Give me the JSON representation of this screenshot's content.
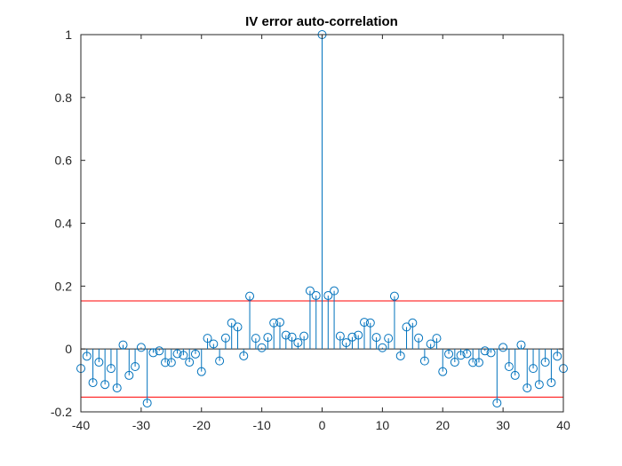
{
  "chart_data": {
    "type": "stem",
    "title": "IV error auto-correlation",
    "xlabel": "",
    "ylabel": "",
    "xlim": [
      -40,
      40
    ],
    "ylim": [
      -0.2,
      1
    ],
    "x_ticks": [
      -40,
      -30,
      -20,
      -10,
      0,
      10,
      20,
      30,
      40
    ],
    "y_ticks": [
      -0.2,
      0,
      0.2,
      0.4,
      0.6,
      0.8,
      1
    ],
    "y_tick_labels": [
      "-0.2",
      "0",
      "0.2",
      "0.4",
      "0.6",
      "0.8",
      "1"
    ],
    "grid": false,
    "box": true,
    "confidence_bounds": [
      0.153,
      -0.153
    ],
    "colors": {
      "stem": "#0072BD",
      "bound": "#FF0000",
      "axis": "#262626"
    },
    "x": [
      -40,
      -39,
      -38,
      -37,
      -36,
      -35,
      -34,
      -33,
      -32,
      -31,
      -30,
      -29,
      -28,
      -27,
      -26,
      -25,
      -24,
      -23,
      -22,
      -21,
      -20,
      -19,
      -18,
      -17,
      -16,
      -15,
      -14,
      -13,
      -12,
      -11,
      -10,
      -9,
      -8,
      -7,
      -6,
      -5,
      -4,
      -3,
      -2,
      -1,
      0,
      1,
      2,
      3,
      4,
      5,
      6,
      7,
      8,
      9,
      10,
      11,
      12,
      13,
      14,
      15,
      16,
      17,
      18,
      19,
      20,
      21,
      22,
      23,
      24,
      25,
      26,
      27,
      28,
      29,
      30,
      31,
      32,
      33,
      34,
      35,
      36,
      37,
      38,
      39,
      40
    ],
    "values": [
      -0.062,
      -0.023,
      -0.107,
      -0.042,
      -0.113,
      -0.062,
      -0.124,
      0.013,
      -0.084,
      -0.056,
      0.005,
      -0.172,
      -0.012,
      -0.006,
      -0.043,
      -0.043,
      -0.015,
      -0.02,
      -0.042,
      -0.016,
      -0.072,
      0.034,
      0.016,
      -0.038,
      0.035,
      0.083,
      0.07,
      -0.022,
      0.168,
      0.034,
      0.004,
      0.037,
      0.083,
      0.085,
      0.044,
      0.038,
      0.02,
      0.041,
      0.185,
      0.17,
      1.0,
      0.17,
      0.185,
      0.041,
      0.02,
      0.038,
      0.044,
      0.085,
      0.083,
      0.037,
      0.004,
      0.034,
      0.168,
      -0.022,
      0.07,
      0.083,
      0.035,
      -0.038,
      0.016,
      0.034,
      -0.072,
      -0.016,
      -0.042,
      -0.02,
      -0.015,
      -0.043,
      -0.043,
      -0.006,
      -0.012,
      -0.172,
      0.005,
      -0.056,
      -0.084,
      0.013,
      -0.124,
      -0.062,
      -0.113,
      -0.042,
      -0.107,
      -0.023,
      -0.062
    ]
  }
}
